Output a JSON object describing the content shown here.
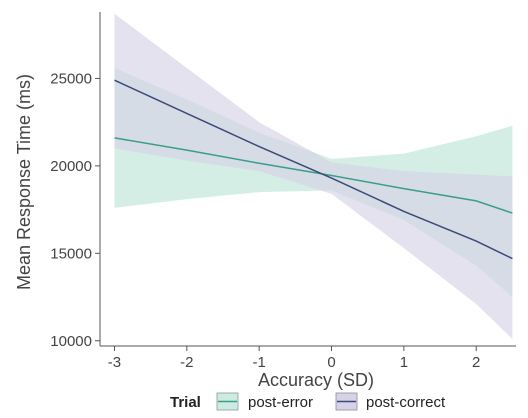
{
  "chart_data": {
    "type": "line",
    "title": "",
    "xlabel": "Accuracy (SD)",
    "ylabel": "Mean Response Time (ms)",
    "xlim": [
      -3.2,
      2.55
    ],
    "ylim": [
      9700,
      28800
    ],
    "x_ticks": [
      -3,
      -2,
      -1,
      0,
      1,
      2
    ],
    "x_tick_labels": [
      "-3",
      "-2",
      "-1",
      "0",
      "1",
      "2"
    ],
    "y_ticks": [
      10000,
      15000,
      20000,
      25000
    ],
    "y_tick_labels": [
      "10000",
      "15000",
      "20000",
      "25000"
    ],
    "grid": false,
    "legend": {
      "title": "Trial",
      "position": "bottom"
    },
    "series": [
      {
        "name": "post-error",
        "color": "#3a9e8a",
        "band_color": "#cdebe0",
        "x": [
          -3,
          -2,
          -1,
          0,
          1,
          2,
          2.5
        ],
        "y": [
          21600,
          20900,
          20150,
          19450,
          18700,
          18000,
          17300
        ],
        "lower": [
          17600,
          18100,
          18500,
          18600,
          16900,
          14300,
          12500
        ],
        "upper": [
          25600,
          23800,
          21900,
          20400,
          20700,
          21700,
          22300
        ]
      },
      {
        "name": "post-correct",
        "color": "#3c4a7a",
        "band_color": "#d6d3e6",
        "x": [
          -3,
          -2,
          -1,
          0,
          1,
          2,
          2.5
        ],
        "y": [
          24900,
          23000,
          21100,
          19300,
          17400,
          15700,
          14700
        ],
        "lower": [
          21000,
          20300,
          19700,
          18400,
          15300,
          12100,
          10100
        ],
        "upper": [
          28700,
          25600,
          22500,
          20200,
          19700,
          19500,
          19400
        ]
      }
    ]
  }
}
